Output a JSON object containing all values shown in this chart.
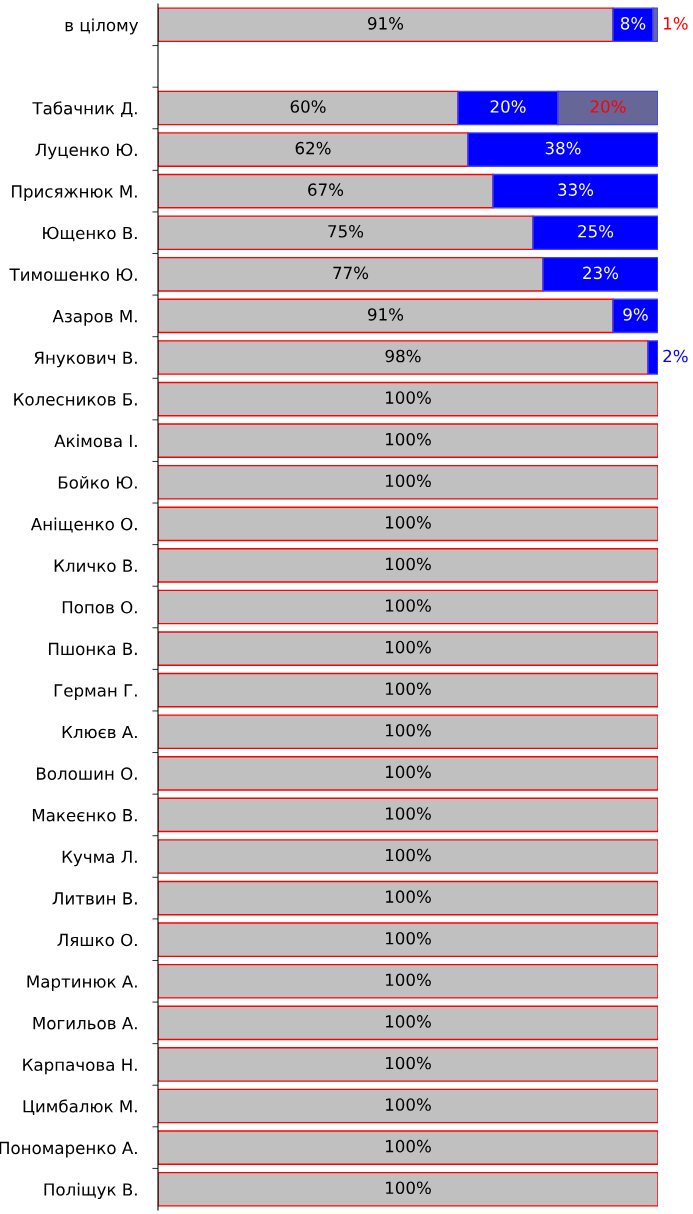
{
  "chart_data": {
    "type": "bar",
    "orientation": "horizontal",
    "stacked": true,
    "legend": false,
    "grid": false,
    "tick_labels": "y",
    "categories": [
      "в цілому",
      null,
      "Табачник Д.",
      "Луценко Ю.",
      "Присяжнюк М.",
      "Ющенко В.",
      "Тимошенко Ю.",
      "Азаров М.",
      "Янукович В.",
      "Колесников Б.",
      "Акімова І.",
      "Бойко Ю.",
      "Аніщенко О.",
      "Кличко В.",
      "Попов О.",
      "Пшонка В.",
      "Герман Г.",
      "Клюєв А.",
      "Волошин О.",
      "Макеєнко В.",
      "Кучма Л.",
      "Литвин В.",
      "Ляшко О.",
      "Мартинюк А.",
      "Могильов А.",
      "Карпачова Н.",
      "Цимбалюк М.",
      "Пономаренко А.",
      "Поліщук В."
    ],
    "series": [
      {
        "color": "#c0c0c0",
        "values": [
          91,
          null,
          60,
          62,
          67,
          75,
          77,
          91,
          98,
          100,
          100,
          100,
          100,
          100,
          100,
          100,
          100,
          100,
          100,
          100,
          100,
          100,
          100,
          100,
          100,
          100,
          100,
          100,
          100
        ],
        "value_labels": [
          "91%",
          null,
          "60%",
          "62%",
          "67%",
          "75%",
          "77%",
          "91%",
          "98%",
          "100%",
          "100%",
          "100%",
          "100%",
          "100%",
          "100%",
          "100%",
          "100%",
          "100%",
          "100%",
          "100%",
          "100%",
          "100%",
          "100%",
          "100%",
          "100%",
          "100%",
          "100%",
          "100%",
          "100%"
        ]
      },
      {
        "color": "#0000ff",
        "values": [
          8,
          null,
          20,
          38,
          33,
          25,
          23,
          9,
          2,
          null,
          null,
          null,
          null,
          null,
          null,
          null,
          null,
          null,
          null,
          null,
          null,
          null,
          null,
          null,
          null,
          null,
          null,
          null,
          null
        ],
        "value_labels": [
          "8%",
          null,
          "20%",
          "38%",
          "33%",
          "25%",
          "23%",
          "9%",
          "2%",
          null,
          null,
          null,
          null,
          null,
          null,
          null,
          null,
          null,
          null,
          null,
          null,
          null,
          null,
          null,
          null,
          null,
          null,
          null,
          null
        ]
      },
      {
        "color": "#666699",
        "values": [
          1,
          null,
          20,
          null,
          null,
          null,
          null,
          null,
          null,
          null,
          null,
          null,
          null,
          null,
          null,
          null,
          null,
          null,
          null,
          null,
          null,
          null,
          null,
          null,
          null,
          null,
          null,
          null,
          null
        ],
        "value_labels": [
          "1%",
          null,
          "20%",
          null,
          null,
          null,
          null,
          null,
          null,
          null,
          null,
          null,
          null,
          null,
          null,
          null,
          null,
          null,
          null,
          null,
          null,
          null,
          null,
          null,
          null,
          null,
          null,
          null,
          null
        ]
      }
    ]
  }
}
